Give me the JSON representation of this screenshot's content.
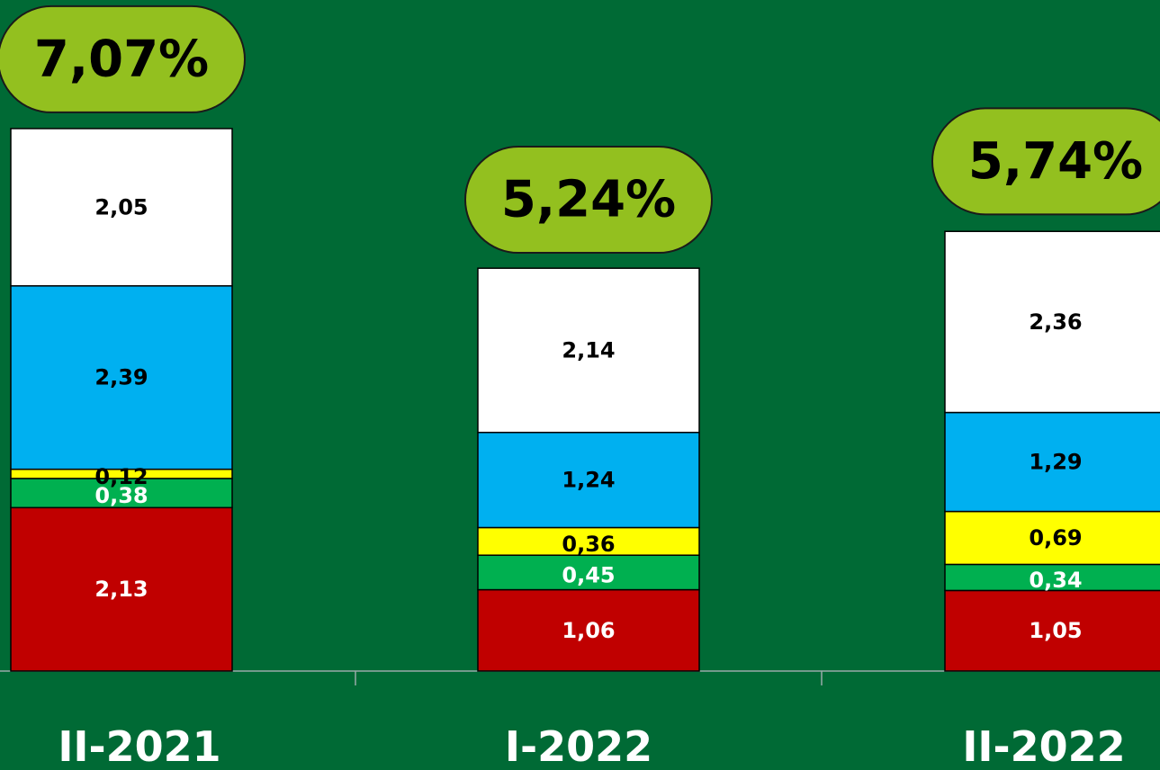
{
  "chart_data": {
    "type": "stacked-bar",
    "categories": [
      "II-2021",
      "I-2022",
      "II-2022"
    ],
    "series": [
      {
        "color": "#c00000",
        "label_color": "#ffffff",
        "values": [
          2.13,
          1.06,
          1.05
        ],
        "value_labels": [
          "2,13",
          "1,06",
          "1,05"
        ]
      },
      {
        "color": "#00b050",
        "label_color": "#ffffff",
        "values": [
          0.38,
          0.45,
          0.34
        ],
        "value_labels": [
          "0,38",
          "0,45",
          "0,34"
        ]
      },
      {
        "color": "#ffff00",
        "label_color": "#000000",
        "values": [
          0.12,
          0.36,
          0.69
        ],
        "value_labels": [
          "0,12",
          "0,36",
          "0,69"
        ]
      },
      {
        "color": "#00b0f0",
        "label_color": "#000000",
        "values": [
          2.39,
          1.24,
          1.29
        ],
        "value_labels": [
          "2,39",
          "1,24",
          "1,29"
        ]
      },
      {
        "color": "#ffffff",
        "label_color": "#000000",
        "values": [
          2.05,
          2.14,
          2.36
        ],
        "value_labels": [
          "2,05",
          "2,14",
          "2,36"
        ]
      }
    ],
    "totals": [
      7.07,
      5.24,
      5.74
    ],
    "total_labels": [
      "7,07%",
      "5,24%",
      "5,74%"
    ],
    "total_color": "#93c01f"
  }
}
